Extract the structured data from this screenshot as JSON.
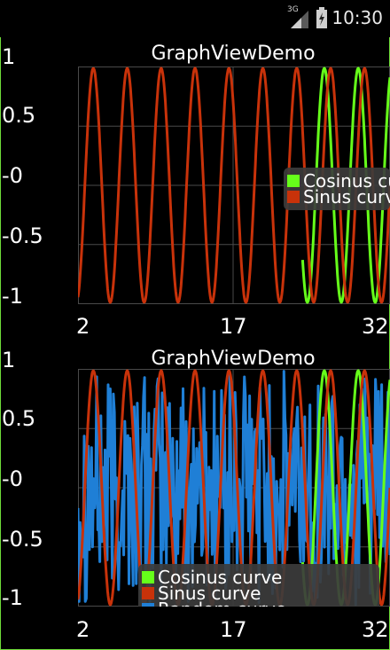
{
  "status_bar": {
    "network": "3G",
    "time": "10:30",
    "icons": [
      "signal-icon",
      "battery-icon"
    ]
  },
  "graphs": [
    {
      "title": "GraphViewDemo",
      "y_ticks": [
        "1",
        "0.5",
        "-0",
        "-0.5",
        "-1"
      ],
      "x_ticks": [
        "2",
        "17",
        "32"
      ],
      "legend": [
        "Cosinus curve",
        "Sinus curve"
      ]
    },
    {
      "title": "GraphViewDemo",
      "y_ticks": [
        "1",
        "0.5",
        "-0",
        "-0.5",
        "-1"
      ],
      "x_ticks": [
        "2",
        "17",
        "32"
      ],
      "legend": [
        "Cosinus curve",
        "Sinus curve",
        "Random curve"
      ]
    }
  ],
  "colors": {
    "sinus": "#c8320a",
    "cosinus": "#66ff1a",
    "random": "#1f7fd6",
    "grid": "#4a4a4a",
    "legend_bg": "#3c3c3c"
  },
  "chart_data": [
    {
      "type": "line",
      "title": "GraphViewDemo",
      "x_range": [
        2,
        32
      ],
      "ylim": [
        -1,
        1
      ],
      "grid": true,
      "legend_position": "right",
      "series": [
        {
          "name": "Cosinus curve",
          "function": "cos",
          "x_range": [
            23.6,
            32
          ],
          "period": 3.26
        },
        {
          "name": "Sinus curve",
          "function": "sin",
          "x_range": [
            2,
            32
          ],
          "period": 3.26
        }
      ]
    },
    {
      "type": "line",
      "title": "GraphViewDemo",
      "x_range": [
        2,
        32
      ],
      "ylim": [
        -1,
        1
      ],
      "grid": true,
      "legend_position": "bottom-right",
      "series": [
        {
          "name": "Cosinus curve",
          "function": "cos",
          "x_range": [
            23.6,
            32
          ],
          "period": 3.26
        },
        {
          "name": "Sinus curve",
          "function": "sin",
          "x_range": [
            2,
            32
          ],
          "period": 3.26
        },
        {
          "name": "Random curve",
          "function": "random",
          "x_range": [
            2,
            32
          ],
          "range": [
            -1,
            1
          ]
        }
      ]
    }
  ]
}
